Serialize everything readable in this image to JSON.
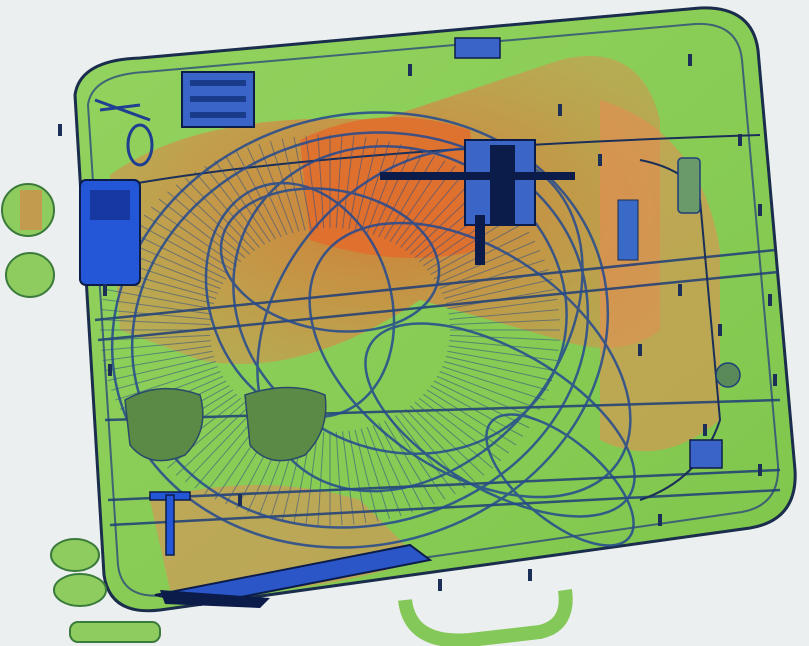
{
  "scan": {
    "colors": {
      "background": "#ecefef",
      "organic": "#e2703a",
      "mixed": "#6fbf3e",
      "metal": "#1f4fd0",
      "dense": "#0c1c4a"
    }
  }
}
